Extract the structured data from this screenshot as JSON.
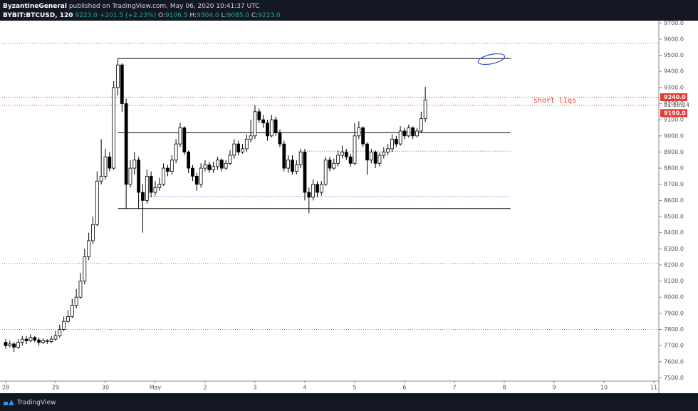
{
  "header": {
    "author": "ByzantineGeneral",
    "published": "published on TradingView.com, May 06, 2020 10:41:37 UTC",
    "symbol": "BYBIT:BTCUSD, 120",
    "last": "9223.0",
    "change": "+201.5 (+2.23%)",
    "ohlc": [
      [
        "O:",
        "9106.5"
      ],
      [
        "H:",
        "9304.0"
      ],
      [
        "L:",
        "9085.0"
      ],
      [
        "C:",
        "9223.0"
      ]
    ]
  },
  "footer": {
    "brand": "TradingView"
  },
  "chart_data": {
    "type": "candlestick",
    "up_color": "#ffffff",
    "down_color": "#000000",
    "border_color": "#000000",
    "grid": false,
    "x": [
      0,
      2,
      4,
      6,
      8,
      10,
      12,
      14,
      16,
      18,
      20,
      22,
      24,
      26,
      28,
      30,
      32,
      34,
      36,
      38,
      40,
      42,
      44,
      46,
      48,
      50,
      52,
      54,
      56,
      58,
      60,
      62,
      64,
      66,
      68,
      70,
      72,
      74,
      76,
      78,
      80,
      82,
      84,
      86,
      88,
      90,
      92,
      94,
      96,
      98,
      100,
      102,
      104,
      106,
      108,
      110,
      112,
      114,
      116,
      118,
      120,
      122,
      124,
      126,
      128,
      130,
      132,
      134,
      136,
      138,
      140,
      142,
      144,
      146,
      148,
      150,
      152,
      154,
      156,
      158,
      160,
      162,
      164,
      166,
      168,
      170,
      172,
      174,
      176,
      178,
      180,
      182,
      184,
      186,
      188,
      190,
      192,
      194,
      196,
      198,
      200,
      202
    ],
    "open": [
      7720,
      7700,
      7710,
      7690,
      7720,
      7740,
      7730,
      7750,
      7735,
      7720,
      7730,
      7725,
      7740,
      7760,
      7800,
      7850,
      7880,
      7950,
      8000,
      8100,
      8250,
      8350,
      8450,
      8720,
      8750,
      8870,
      8800,
      9300,
      9440,
      9200,
      8700,
      8800,
      8850,
      8650,
      8600,
      8750,
      8650,
      8680,
      8700,
      8800,
      8780,
      8850,
      8950,
      9050,
      8900,
      8800,
      8750,
      8700,
      8800,
      8820,
      8790,
      8810,
      8850,
      8800,
      8830,
      8880,
      8950,
      8900,
      8920,
      8980,
      9000,
      9150,
      9100,
      9080,
      9000,
      9100,
      9020,
      8950,
      8800,
      8850,
      8780,
      8820,
      8900,
      8650,
      8620,
      8700,
      8650,
      8700,
      8850,
      8800,
      8830,
      8880,
      8900,
      8870,
      8830,
      9000,
      9050,
      8950,
      8850,
      8900,
      8830,
      8880,
      8900,
      8920,
      8980,
      8950,
      9030,
      9000,
      9050,
      9000,
      9030,
      9106.5
    ],
    "high": [
      7740,
      7730,
      7720,
      7740,
      7760,
      7760,
      7770,
      7760,
      7750,
      7745,
      7740,
      7760,
      7790,
      7830,
      7880,
      7920,
      7990,
      8050,
      8150,
      8300,
      8400,
      8500,
      8780,
      8980,
      8920,
      8900,
      9340,
      9480,
      9450,
      9230,
      8850,
      8900,
      8870,
      8700,
      8790,
      8780,
      8720,
      8740,
      8830,
      8820,
      8880,
      8980,
      9080,
      9060,
      8910,
      8820,
      8770,
      8830,
      8850,
      8840,
      8840,
      8870,
      8860,
      8850,
      8910,
      8980,
      8970,
      8950,
      9010,
      9100,
      9190,
      9170,
      9130,
      9100,
      9130,
      9120,
      9040,
      8970,
      8880,
      8880,
      8850,
      8920,
      8920,
      8680,
      8730,
      8720,
      8720,
      8870,
      8870,
      8860,
      8910,
      8940,
      8920,
      8890,
      9080,
      9090,
      9060,
      8960,
      8920,
      8910,
      8900,
      8930,
      8950,
      9010,
      9000,
      9060,
      9050,
      9070,
      9060,
      9050,
      9150,
      9304
    ],
    "low": [
      7680,
      7690,
      7660,
      7680,
      7700,
      7710,
      7720,
      7720,
      7700,
      7710,
      7710,
      7715,
      7730,
      7750,
      7790,
      7840,
      7870,
      7930,
      7990,
      8080,
      8230,
      8330,
      8440,
      8700,
      8730,
      8780,
      8790,
      9250,
      9150,
      8550,
      8680,
      8760,
      8550,
      8400,
      8580,
      8620,
      8630,
      8660,
      8690,
      8750,
      8760,
      8830,
      8930,
      8880,
      8770,
      8720,
      8660,
      8680,
      8780,
      8770,
      8770,
      8790,
      8780,
      8790,
      8820,
      8860,
      8880,
      8890,
      8900,
      8960,
      8980,
      9080,
      9050,
      8970,
      8990,
      9000,
      8930,
      8780,
      8770,
      8760,
      8760,
      8800,
      8600,
      8520,
      8600,
      8620,
      8630,
      8690,
      8780,
      8790,
      8810,
      8860,
      8850,
      8810,
      8820,
      8980,
      8930,
      8760,
      8830,
      8800,
      8810,
      8860,
      8880,
      8900,
      8930,
      8940,
      8980,
      8990,
      8980,
      8990,
      9020,
      9085
    ],
    "close": [
      7700,
      7710,
      7690,
      7720,
      7740,
      7730,
      7750,
      7735,
      7720,
      7730,
      7725,
      7740,
      7760,
      7800,
      7850,
      7880,
      7950,
      8000,
      8100,
      8250,
      8350,
      8450,
      8720,
      8750,
      8870,
      8800,
      9300,
      9440,
      9200,
      8700,
      8800,
      8850,
      8650,
      8600,
      8750,
      8650,
      8680,
      8700,
      8800,
      8780,
      8850,
      8950,
      9050,
      8900,
      8800,
      8750,
      8700,
      8800,
      8820,
      8790,
      8810,
      8850,
      8800,
      8830,
      8880,
      8950,
      8900,
      8920,
      8980,
      9000,
      9150,
      9100,
      9080,
      9000,
      9100,
      9020,
      8950,
      8800,
      8850,
      8780,
      8820,
      8900,
      8650,
      8620,
      8700,
      8650,
      8700,
      8850,
      8800,
      8830,
      8880,
      8900,
      8870,
      8830,
      9000,
      9050,
      8950,
      8850,
      8900,
      8830,
      8880,
      8900,
      8920,
      8980,
      8950,
      9030,
      9000,
      9050,
      9000,
      9030,
      9106.5,
      9223
    ],
    "xlim": [
      -1.7,
      314.4
    ],
    "xticks": [
      {
        "value": 0,
        "label": "28"
      },
      {
        "value": 24,
        "label": "29"
      },
      {
        "value": 48,
        "label": "30"
      },
      {
        "value": 72,
        "label": "May"
      },
      {
        "value": 96,
        "label": "2"
      },
      {
        "value": 120,
        "label": "3"
      },
      {
        "value": 144,
        "label": "4"
      },
      {
        "value": 168,
        "label": "5"
      },
      {
        "value": 192,
        "label": "6"
      },
      {
        "value": 216,
        "label": "7"
      },
      {
        "value": 240,
        "label": "8"
      },
      {
        "value": 264,
        "label": "9"
      },
      {
        "value": 288,
        "label": "10"
      },
      {
        "value": 312,
        "label": "11"
      }
    ],
    "ylim": [
      7480,
      9710
    ],
    "yticks": [
      {
        "value": 7500,
        "label": "7500.0"
      },
      {
        "value": 7600,
        "label": "7600.0"
      },
      {
        "value": 7700,
        "label": "7700.0"
      },
      {
        "value": 7800,
        "label": "7800.0"
      },
      {
        "value": 7900,
        "label": "7900.0"
      },
      {
        "value": 8000,
        "label": "8000.0"
      },
      {
        "value": 8100,
        "label": "8100.0"
      },
      {
        "value": 8200,
        "label": "8200.0"
      },
      {
        "value": 8300,
        "label": "8300.0"
      },
      {
        "value": 8400,
        "label": "8400.0"
      },
      {
        "value": 8500,
        "label": "8500.0"
      },
      {
        "value": 8600,
        "label": "8600.0"
      },
      {
        "value": 8700,
        "label": "8700.0"
      },
      {
        "value": 8800,
        "label": "8800.0"
      },
      {
        "value": 8900,
        "label": "8900.0"
      },
      {
        "value": 9000,
        "label": "9000.0"
      },
      {
        "value": 9100,
        "label": "9100.0"
      },
      {
        "value": 9200,
        "label": "9200.0"
      },
      {
        "value": 9300,
        "label": "9300.0"
      },
      {
        "value": 9400,
        "label": "9400.0"
      },
      {
        "value": 9500,
        "label": "9500.0"
      },
      {
        "value": 9600,
        "label": "9600.0"
      },
      {
        "value": 9700,
        "label": "9700.0"
      }
    ],
    "levels": [
      {
        "value": 9575,
        "color": "#888888",
        "style": "dotted"
      },
      {
        "value": 9480,
        "color": "#000000",
        "style": "solid",
        "from": 54,
        "to": 243
      },
      {
        "value": 9240,
        "color": "#e53935",
        "style": "dotted"
      },
      {
        "value": 9190,
        "color": "#e53935",
        "style": "dotted"
      },
      {
        "value": 9020,
        "color": "#000000",
        "style": "solid",
        "from": 54,
        "to": 243
      },
      {
        "value": 8905,
        "color": "#5b7fd6",
        "style": "dotted",
        "from": 141,
        "to": 243
      },
      {
        "value": 8625,
        "color": "#5b7fd6",
        "style": "dotted",
        "from": 66,
        "to": 243
      },
      {
        "value": 8550,
        "color": "#000000",
        "style": "solid",
        "from": 54,
        "to": 243
      },
      {
        "value": 8210,
        "color": "#888888",
        "style": "dotted"
      },
      {
        "value": 7800,
        "color": "#888888",
        "style": "dotted"
      }
    ],
    "price_labels": [
      {
        "value": 9240,
        "label": "9240.0",
        "color": "#e53935"
      },
      {
        "value": 9190,
        "label": "9190.0",
        "color": "#e53935"
      }
    ],
    "countdown": "01:18:24",
    "annotations": [
      {
        "text": "short liqs",
        "x": 254,
        "y": 9220,
        "color": "#e53935"
      }
    ]
  }
}
